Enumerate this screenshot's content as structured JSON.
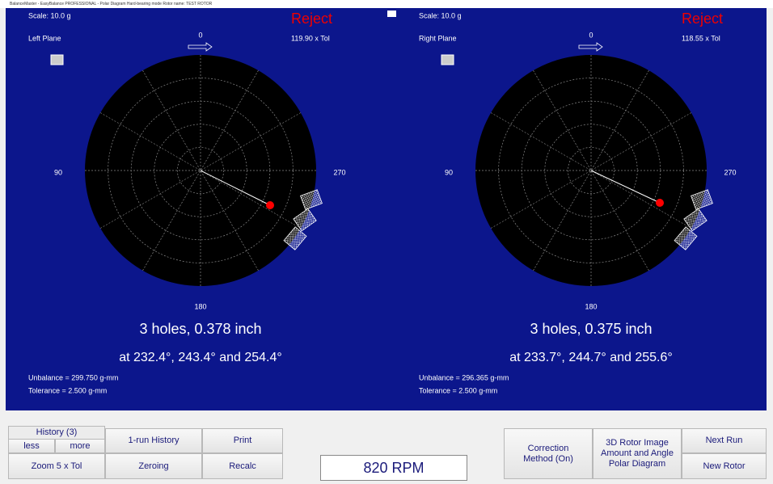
{
  "title_bar": "BalanceMaster - EasyBalance PROFESSIONAL - Polar Diagram   Hard-bearing mode   Rotor name: TEST ROTOR",
  "planes": [
    {
      "scale": "Scale: 10.0 g",
      "status": "Reject",
      "name": "Left Plane",
      "tol_ratio": "119.90 x Tol",
      "angle_labels": {
        "top": "0",
        "left": "90",
        "right": "270",
        "bottom": "180"
      },
      "holes": "3 holes, 0.378 inch",
      "angles": "at 232.4°, 243.4° and 254.4°",
      "unbalance": "Unbalance = 299.750 g-mm",
      "tolerance": "Tolerance = 2.500 g-mm"
    },
    {
      "scale": "Scale: 10.0 g",
      "status": "Reject",
      "name": "Right Plane",
      "tol_ratio": "118.55 x Tol",
      "angle_labels": {
        "top": "0",
        "left": "90",
        "right": "270",
        "bottom": "180"
      },
      "holes": "3 holes, 0.375 inch",
      "angles": "at 233.7°, 244.7° and 255.6°",
      "unbalance": "Unbalance = 296.365 g-mm",
      "tolerance": "Tolerance = 2.500 g-mm"
    }
  ],
  "buttons": {
    "history": "History (3)",
    "less": "less",
    "more": "more",
    "one_run_history": "1-run History",
    "print": "Print",
    "zoom": "Zoom 5 x Tol",
    "zeroing": "Zeroing",
    "recalc": "Recalc",
    "correction": "Correction Method (On)",
    "rotor_image": "3D Rotor Image Amount and Angle Polar Diagram",
    "next_run": "Next Run",
    "new_rotor": "New Rotor"
  },
  "rpm": "820 RPM"
}
